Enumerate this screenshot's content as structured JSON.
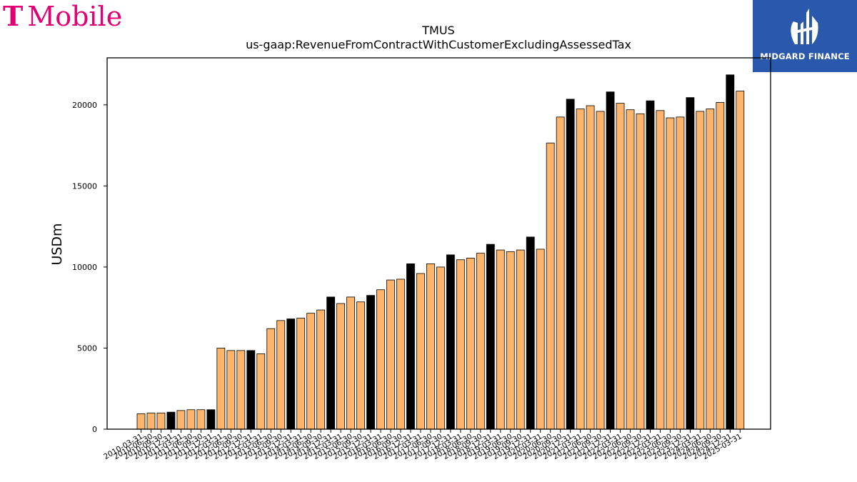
{
  "brand_left": {
    "name": "T Mobile",
    "t_mark": "T",
    "word": "Mobile",
    "color": "#e20074"
  },
  "brand_right": {
    "name": "MIDGARD FINANCE",
    "bg_color": "#2a58ad"
  },
  "colors": {
    "bar_default": "#fdb46c",
    "bar_highlight": "#000000",
    "bar_edge": "#000000"
  },
  "chart_data": {
    "type": "bar",
    "title": "TMUS",
    "subtitle": "us-gaap:RevenueFromContractWithCustomerExcludingAssessedTax",
    "xlabel": "",
    "ylabel": "USDm",
    "ylim": [
      0,
      22900
    ],
    "yticks": [
      0,
      5000,
      10000,
      15000,
      20000
    ],
    "grid": false,
    "highlight_rule": "fiscal-year-end (xxxx-12-31) bars drawn in black",
    "categories": [
      "2010-03-31",
      "2010-06-30",
      "2010-09-30",
      "2010-12-31",
      "2011-03-31",
      "2011-06-30",
      "2011-09-30",
      "2011-12-31",
      "2012-03-31",
      "2012-06-30",
      "2012-09-30",
      "2012-12-31",
      "2013-03-31",
      "2013-06-30",
      "2013-09-30",
      "2013-12-31",
      "2014-03-31",
      "2014-06-30",
      "2014-09-30",
      "2014-12-31",
      "2015-03-31",
      "2015-06-30",
      "2015-09-30",
      "2015-12-31",
      "2016-03-31",
      "2016-06-30",
      "2016-09-30",
      "2016-12-31",
      "2017-03-31",
      "2017-06-30",
      "2017-09-30",
      "2017-12-31",
      "2018-03-31",
      "2018-06-30",
      "2018-09-30",
      "2018-12-31",
      "2019-03-31",
      "2019-06-30",
      "2019-09-30",
      "2019-12-31",
      "2020-03-31",
      "2020-06-30",
      "2020-09-30",
      "2020-12-31",
      "2021-03-31",
      "2021-06-30",
      "2021-09-30",
      "2021-12-31",
      "2022-03-31",
      "2022-06-30",
      "2022-09-30",
      "2022-12-31",
      "2023-03-31",
      "2023-06-30",
      "2023-09-30",
      "2023-12-31",
      "2024-03-31",
      "2024-06-30",
      "2024-09-30",
      "2024-12-31",
      "2025-03-31"
    ],
    "values": [
      950,
      1000,
      1000,
      1050,
      1150,
      1200,
      1200,
      1200,
      5000,
      4850,
      4850,
      4850,
      4650,
      6200,
      6700,
      6800,
      6850,
      7150,
      7350,
      8150,
      7750,
      8150,
      7850,
      8250,
      8600,
      9200,
      9250,
      10200,
      9600,
      10200,
      10000,
      10750,
      10450,
      10550,
      10850,
      11400,
      11050,
      10950,
      11050,
      11850,
      11100,
      17650,
      19250,
      20350,
      19750,
      19950,
      19600,
      20800,
      20100,
      19700,
      19450,
      20250,
      19650,
      19200,
      19250,
      20450,
      19600,
      19750,
      20150,
      21850,
      20850
    ]
  }
}
